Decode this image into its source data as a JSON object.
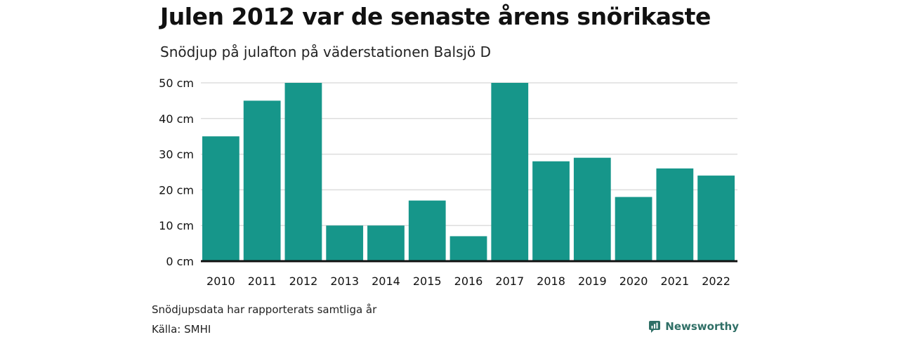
{
  "header": {
    "title": "Julen 2012 var de senaste årens snörikaste",
    "subtitle": "Snödjup på julafton på väderstationen Balsjö D"
  },
  "footer": {
    "note": "Snödjupsdata har rapporterats samtliga år",
    "source": "Källa: SMHI",
    "brand": "Newsworthy"
  },
  "colors": {
    "bar": "#16968a",
    "grid": "#dddddd",
    "axis": "#111111",
    "brand": "#2f6f66"
  },
  "chart_data": {
    "type": "bar",
    "title": "Julen 2012 var de senaste årens snörikaste",
    "subtitle": "Snödjup på julafton på väderstationen Balsjö D",
    "categories": [
      "2010",
      "2011",
      "2012",
      "2013",
      "2014",
      "2015",
      "2016",
      "2017",
      "2018",
      "2019",
      "2020",
      "2021",
      "2022"
    ],
    "values": [
      35,
      45,
      50,
      10,
      10,
      17,
      7,
      50,
      28,
      29,
      18,
      26,
      24
    ],
    "unit": "cm",
    "ylim": [
      0,
      50
    ],
    "yticks": [
      "0 cm",
      "10 cm",
      "20 cm",
      "30 cm",
      "40 cm",
      "50 cm"
    ],
    "grid": true,
    "legend": "none"
  }
}
